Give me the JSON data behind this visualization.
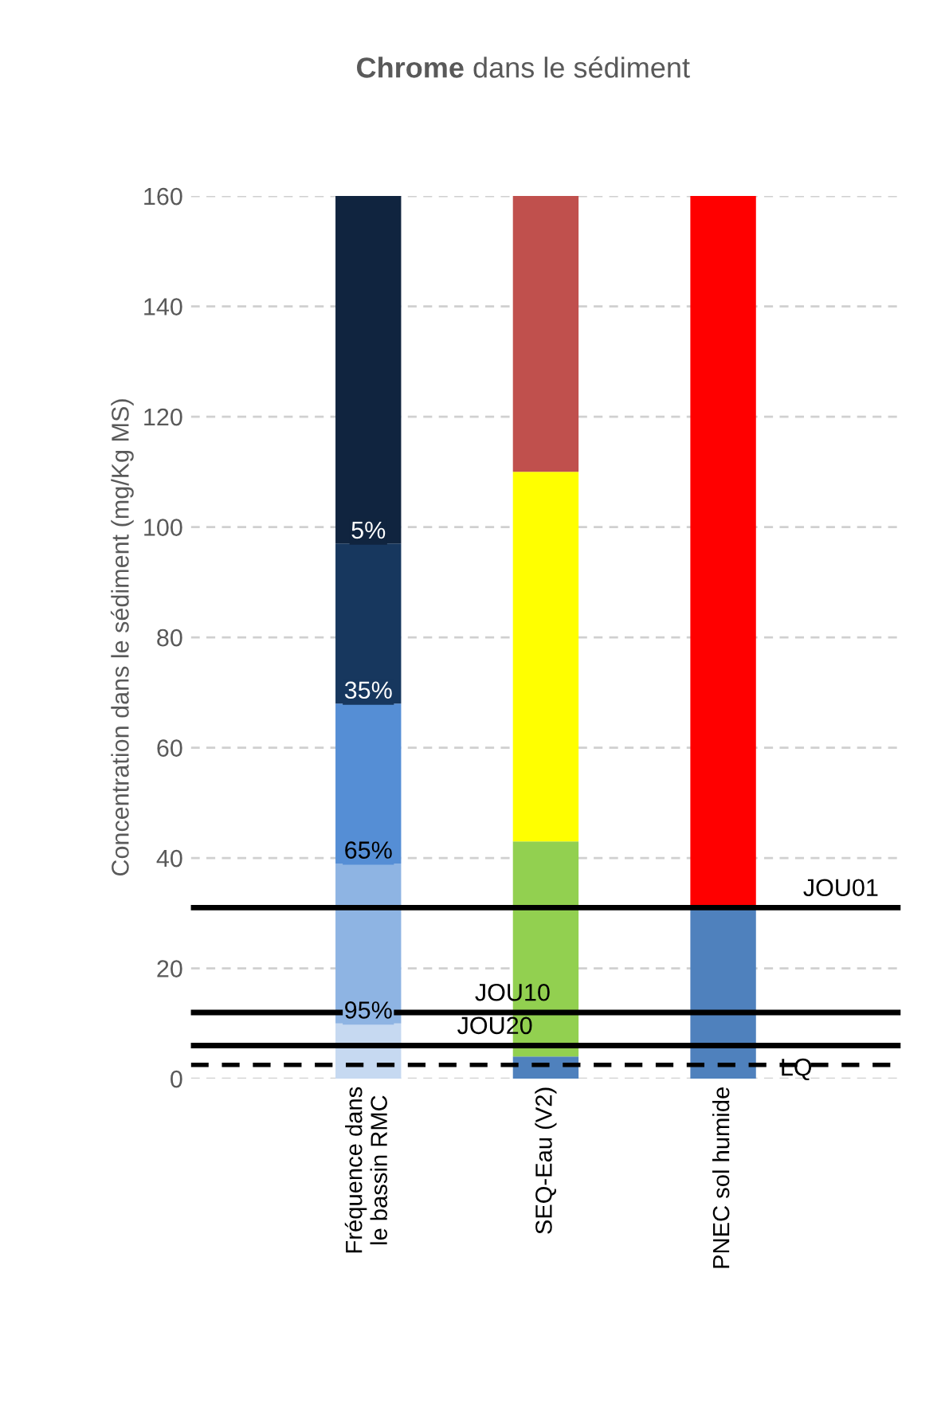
{
  "chart_data": {
    "type": "bar",
    "title": "Chrome dans le sédiment",
    "ylabel": "Concentration dans le sédiment (mg/Kg MS)",
    "categories": [
      "Fréquence dans le bassin RMC",
      "SEQ-Eau (V2)",
      "PNEC sol humide"
    ],
    "stacked": true,
    "ylim": [
      0,
      160
    ],
    "yticks": [
      0,
      20,
      40,
      60,
      80,
      100,
      120,
      140,
      160
    ],
    "grid": "y",
    "legend": false,
    "series": [
      {
        "values": [
          10,
          4,
          31
        ],
        "colors": [
          "#c6d9f1",
          "#4f81bd",
          "#4f81bd"
        ]
      },
      {
        "values": [
          29,
          39,
          129
        ],
        "colors": [
          "#8eb4e3",
          "#92d050",
          "#ff0000"
        ]
      },
      {
        "values": [
          29,
          67,
          null
        ],
        "colors": [
          "#558ed5",
          "#ffff00",
          "#ff0000"
        ]
      },
      {
        "values": [
          29,
          50,
          null
        ],
        "colors": [
          "#17375e",
          "#c0504d",
          "#ff0000"
        ]
      },
      {
        "values": [
          63,
          null,
          null
        ],
        "colors": [
          "#10243f",
          "#c0504d",
          "#ff0000"
        ]
      }
    ],
    "annotations": [
      {
        "text": "95%",
        "x": "Fréquence dans le bassin RMC",
        "y": 10
      },
      {
        "text": "65%",
        "x": "Fréquence dans le bassin RMC",
        "y": 39
      },
      {
        "text": "35%",
        "x": "Fréquence dans le bassin RMC",
        "y": 68
      },
      {
        "text": "5%",
        "x": "Fréquence dans le bassin RMC",
        "y": 97
      }
    ],
    "ref_lines": [
      {
        "axis": "y",
        "value": 31,
        "label": "JOU01",
        "color": "#000000",
        "line_style": "solid"
      },
      {
        "axis": "y",
        "value": 12,
        "label": "JOU10",
        "color": "#000000",
        "line_style": "solid"
      },
      {
        "axis": "y",
        "value": 6,
        "label": "JOU20",
        "color": "#000000",
        "line_style": "solid"
      },
      {
        "axis": "y",
        "value": 2.5,
        "label": "LQ",
        "color": "#000000",
        "line_style": "dashed"
      }
    ]
  }
}
